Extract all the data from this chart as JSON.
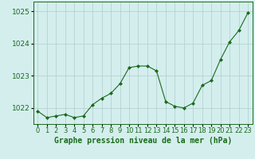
{
  "x": [
    0,
    1,
    2,
    3,
    4,
    5,
    6,
    7,
    8,
    9,
    10,
    11,
    12,
    13,
    14,
    15,
    16,
    17,
    18,
    19,
    20,
    21,
    22,
    23
  ],
  "y": [
    1021.9,
    1021.7,
    1021.75,
    1021.8,
    1021.7,
    1021.75,
    1022.1,
    1022.3,
    1022.45,
    1022.75,
    1023.25,
    1023.3,
    1023.3,
    1023.15,
    1022.2,
    1022.05,
    1022.0,
    1022.15,
    1022.7,
    1022.85,
    1023.5,
    1024.05,
    1024.4,
    1024.95
  ],
  "line_color": "#1a6b1a",
  "marker": "D",
  "marker_size": 2.0,
  "bg_color": "#d4eeee",
  "grid_color": "#b0cccc",
  "xlabel": "Graphe pression niveau de la mer (hPa)",
  "xlabel_fontsize": 7,
  "yticks": [
    1022,
    1023,
    1024,
    1025
  ],
  "ylim": [
    1021.5,
    1025.3
  ],
  "xlim": [
    -0.5,
    23.5
  ],
  "tick_fontsize": 6.5,
  "axis_color": "#1a6b1a"
}
